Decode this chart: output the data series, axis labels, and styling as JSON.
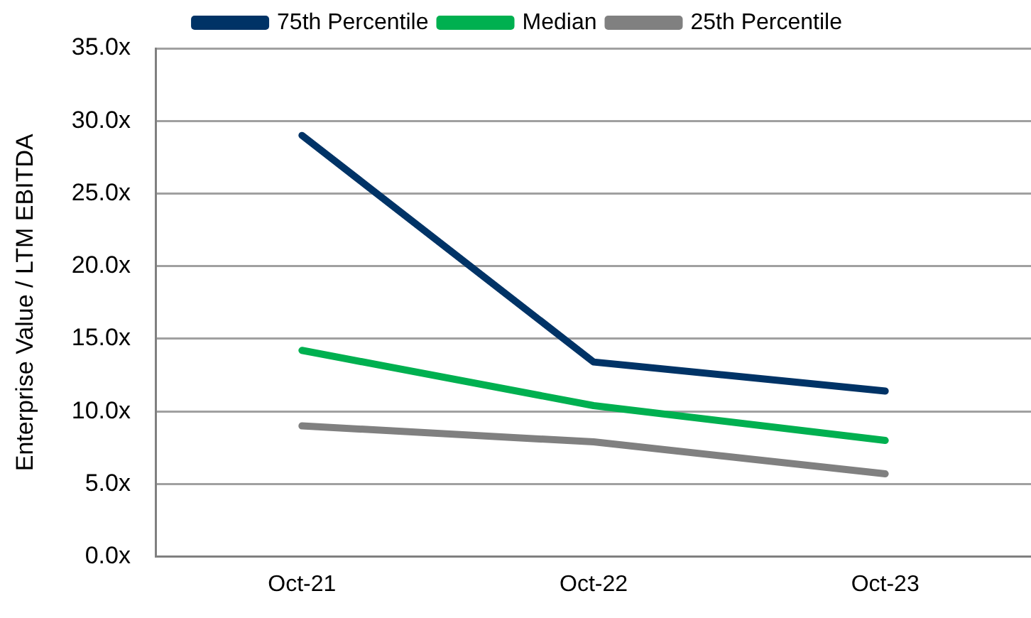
{
  "chart_data": {
    "type": "line",
    "ylabel": "Enterprise Value / LTM EBITDA",
    "categories": [
      "Oct-21",
      "Oct-22",
      "Oct-23"
    ],
    "series": [
      {
        "name": "75th Percentile",
        "color": "#003366",
        "values": [
          29.0,
          13.4,
          11.4
        ]
      },
      {
        "name": "Median",
        "color": "#00b050",
        "values": [
          14.2,
          10.4,
          8.0
        ]
      },
      {
        "name": "25th Percentile",
        "color": "#808080",
        "values": [
          9.0,
          7.9,
          5.7
        ]
      }
    ],
    "ylim": [
      0,
      35
    ],
    "yticks": [
      {
        "value": 0,
        "label": "0.0x"
      },
      {
        "value": 5,
        "label": "5.0x"
      },
      {
        "value": 10,
        "label": "10.0x"
      },
      {
        "value": 15,
        "label": "15.0x"
      },
      {
        "value": 20,
        "label": "20.0x"
      },
      {
        "value": 25,
        "label": "25.0x"
      },
      {
        "value": 30,
        "label": "30.0x"
      },
      {
        "value": 35,
        "label": "35.0x"
      }
    ],
    "grid": "y",
    "legend": "top",
    "marker": "none",
    "line_style": "solid"
  }
}
